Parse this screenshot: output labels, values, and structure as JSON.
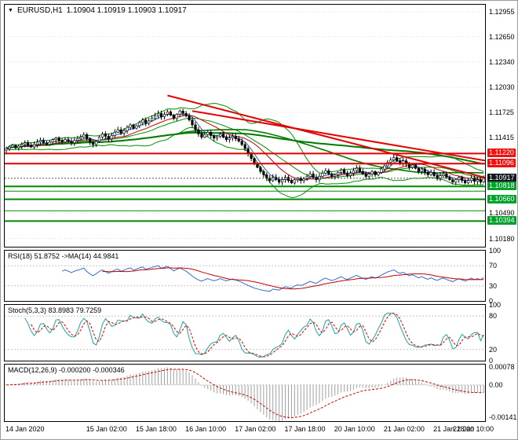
{
  "header": {
    "symbol_timeframe": "EURUSD,H1",
    "ohlc": "1.10904 1.10919 1.10903 1.10917"
  },
  "colors": {
    "background": "#FFFFFF",
    "panel_border": "#000000",
    "grid": "#D9D9D9",
    "grid2": "#C4C4C4",
    "bull": "#FFFFFF",
    "bear": "#000000",
    "wick": "#000000",
    "ma_fast": "#2E5CB8",
    "ma_mid": "#C00000",
    "ma_slow": "#007A00",
    "bb": "#009000",
    "trend": "#E30000",
    "level_red": "#E30000",
    "level_green": "#008A00",
    "current_line": "#555555",
    "box_red": "#EE1111",
    "box_green": "#00A02A",
    "box_current": "#15151E",
    "rsi": "#3A6BC8",
    "rsi_ma": "#C00000",
    "stoch_k": "#1FA3A3",
    "stoch_d": "#E00000",
    "macd_hist": "#A0A0A0",
    "macd_signal": "#D00000"
  },
  "chart_data": {
    "type": "candlestick",
    "symbol": "EURUSD",
    "timeframe": "H1",
    "ohlc_readout": {
      "open": "1.10904",
      "high": "1.10919",
      "low": "1.10903",
      "close": "1.10917"
    },
    "y_axis": {
      "min": 1.1008,
      "max": 1.1304,
      "tick_labels": [
        "1.12955",
        "1.12650",
        "1.12340",
        "1.12030",
        "1.11725",
        "1.11415",
        "1.10490",
        "1.10180"
      ],
      "grid_values": [
        1.12955,
        1.1265,
        1.1234,
        1.1203,
        1.11725,
        1.11415,
        1.11105,
        1.10795,
        1.1049,
        1.1018
      ]
    },
    "x_axis": {
      "ticks": [
        {
          "hour": 0,
          "label": "14 Jan 2020"
        },
        {
          "hour": 26,
          "label": "15 Jan 02:00"
        },
        {
          "hour": 42,
          "label": "15 Jan 18:00"
        },
        {
          "hour": 58,
          "label": "16 Jan 10:00"
        },
        {
          "hour": 74,
          "label": "17 Jan 02:00"
        },
        {
          "hour": 90,
          "label": "17 Jan 18:00"
        },
        {
          "hour": 106,
          "label": "20 Jan 10:00"
        },
        {
          "hour": 122,
          "label": "21 Jan 02:00"
        },
        {
          "hour": 138,
          "label": "21 Jan 18:00"
        },
        {
          "hour": 154,
          "label": "22 Jan 10:00"
        }
      ]
    },
    "candles_close": [
      1.1128,
      1.113,
      1.1132,
      1.1129,
      1.1131,
      1.1133,
      1.1135,
      1.1132,
      1.113,
      1.1133,
      1.1136,
      1.1138,
      1.1135,
      1.1133,
      1.1136,
      1.1139,
      1.1141,
      1.1138,
      1.1136,
      1.1139,
      1.1137,
      1.1135,
      1.1138,
      1.114,
      1.1142,
      1.1145,
      1.114,
      1.1136,
      1.1133,
      1.1137,
      1.1142,
      1.1146,
      1.1143,
      1.114,
      1.1144,
      1.1148,
      1.1151,
      1.1147,
      1.115,
      1.1154,
      1.1157,
      1.1153,
      1.1156,
      1.116,
      1.1163,
      1.1159,
      1.1162,
      1.1165,
      1.1168,
      1.1171,
      1.1167,
      1.117,
      1.1173,
      1.1169,
      1.1165,
      1.117,
      1.1174,
      1.1171,
      1.1168,
      1.1163,
      1.1157,
      1.1151,
      1.1146,
      1.1142,
      1.1145,
      1.1148,
      1.1144,
      1.1141,
      1.1143,
      1.1146,
      1.1142,
      1.1139,
      1.1141,
      1.1143,
      1.114,
      1.1137,
      1.1133,
      1.1128,
      1.1122,
      1.1116,
      1.111,
      1.1105,
      1.11,
      1.1096,
      1.1092,
      1.1089,
      1.1093,
      1.109,
      1.1087,
      1.109,
      1.1093,
      1.1089,
      1.1086,
      1.109,
      1.1092,
      1.1089,
      1.1091,
      1.1094,
      1.1097,
      1.1093,
      1.109,
      1.1094,
      1.1098,
      1.1101,
      1.1097,
      1.1094,
      1.1096,
      1.1099,
      1.1102,
      1.1098,
      1.1095,
      1.1098,
      1.1101,
      1.1104,
      1.11,
      1.1097,
      1.1094,
      1.1097,
      1.11,
      1.1096,
      1.1099,
      1.1103,
      1.1107,
      1.1111,
      1.1114,
      1.1117,
      1.1113,
      1.111,
      1.1113,
      1.1109,
      1.1105,
      1.1108,
      1.1104,
      1.11,
      1.1103,
      1.1099,
      1.1096,
      1.1099,
      1.1095,
      1.1092,
      1.1095,
      1.1097,
      1.1093,
      1.109,
      1.1087,
      1.109,
      1.1093,
      1.1089,
      1.1086,
      1.1089,
      1.1092,
      1.1088,
      1.109,
      1.1087,
      1.10917
    ],
    "price_lines": {
      "red": [
        1.1122,
        1.11096
      ],
      "green_major": [
        1.10818,
        1.1066,
        1.10394
      ],
      "green_minor": [
        1.1076,
        1.1052
      ],
      "current": 1.10917
    },
    "price_boxes": [
      {
        "label": "1.11220",
        "value": 1.1122,
        "color_key": "box_red"
      },
      {
        "label": "1.11096",
        "value": 1.11096,
        "color_key": "box_red"
      },
      {
        "label": "1.10917",
        "value": 1.10917,
        "color_key": "box_current"
      },
      {
        "label": "1.10818",
        "value": 1.10818,
        "color_key": "box_green"
      },
      {
        "label": "1.10660",
        "value": 1.1066,
        "color_key": "box_green"
      },
      {
        "label": "1.10394",
        "value": 1.10394,
        "color_key": "box_green"
      }
    ],
    "trendlines": [
      {
        "from_hour": 52,
        "from_price": 1.1193,
        "to_hour": 155,
        "to_price": 1.1092
      },
      {
        "from_hour": 60,
        "from_price": 1.1174,
        "to_hour": 155,
        "to_price": 1.1113
      }
    ],
    "indicators": [
      {
        "id": "rsi",
        "label": "RSI(18) 51.8752  ->MA(14) 44.9841",
        "values_shown": {
          "rsi": 51.8752,
          "ma": 44.9841
        },
        "range": [
          0,
          100
        ],
        "levels": [
          70,
          30
        ],
        "ticks": [
          {
            "v": 100,
            "label": "100"
          },
          {
            "v": 70,
            "label": "70"
          },
          {
            "v": 30,
            "label": "30"
          },
          {
            "v": 0,
            "label": "0"
          }
        ]
      },
      {
        "id": "stoch",
        "label": "Stoch(5,3,3) 83.8983 79.7259",
        "values_shown": {
          "k": 83.8983,
          "d": 79.7259
        },
        "range": [
          0,
          100
        ],
        "levels": [
          80,
          20
        ],
        "ticks": [
          {
            "v": 100,
            "label": "100"
          },
          {
            "v": 80,
            "label": "80"
          },
          {
            "v": 20,
            "label": "20"
          },
          {
            "v": 0,
            "label": "0"
          }
        ]
      },
      {
        "id": "macd",
        "label": "MACD(12,26,9) -0.000200 -0.000346",
        "values_shown": {
          "macd": -0.0002,
          "signal": -0.000346
        },
        "range": [
          -0.0016,
          0.0009
        ],
        "levels": [
          0
        ],
        "ticks": [
          {
            "v": 0.00078,
            "label": "0.00078"
          },
          {
            "v": 0,
            "label": "0.00"
          },
          {
            "v": -0.00141,
            "label": "-0.00141"
          }
        ]
      }
    ]
  }
}
